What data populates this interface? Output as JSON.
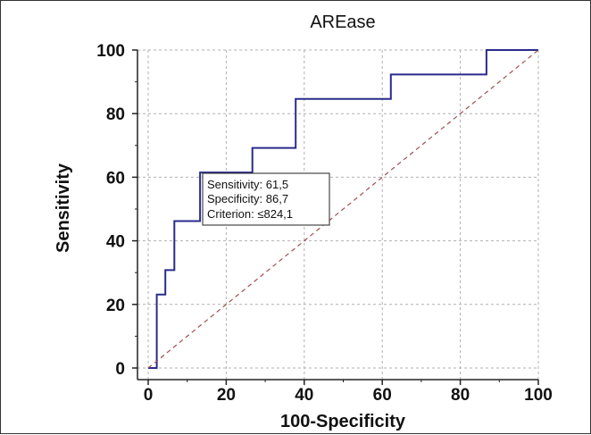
{
  "chart_data": {
    "type": "line",
    "title": "AREase",
    "xlabel": "100-Specificity",
    "ylabel": "Sensitivity",
    "xlim": [
      0,
      100
    ],
    "ylim": [
      0,
      100
    ],
    "xticks": [
      0,
      20,
      40,
      60,
      80,
      100
    ],
    "yticks": [
      0,
      20,
      40,
      60,
      80,
      100
    ],
    "grid": true,
    "colors": {
      "roc": "#2b2b8c",
      "reference": "#a05050",
      "grid": "#b0b0b0"
    },
    "series": [
      {
        "style": "step",
        "x": [
          0,
          2.2,
          2.2,
          4.4,
          4.4,
          6.7,
          6.7,
          13.3,
          13.3,
          26.7,
          26.7,
          37.8,
          37.8,
          62.2,
          62.2,
          86.7,
          86.7,
          100
        ],
        "y": [
          0,
          0,
          23.1,
          23.1,
          30.8,
          30.8,
          46.2,
          46.2,
          61.5,
          61.5,
          69.2,
          69.2,
          84.6,
          84.6,
          92.3,
          92.3,
          100,
          100
        ]
      },
      {
        "style": "dashed",
        "x": [
          0,
          100
        ],
        "y": [
          0,
          100
        ]
      }
    ],
    "annotation": {
      "lines": [
        "Sensitivity: 61,5",
        "Specificity: 86,7",
        "Criterion: ≤824,1"
      ],
      "point": {
        "x": 13.3,
        "y": 61.5
      }
    }
  }
}
